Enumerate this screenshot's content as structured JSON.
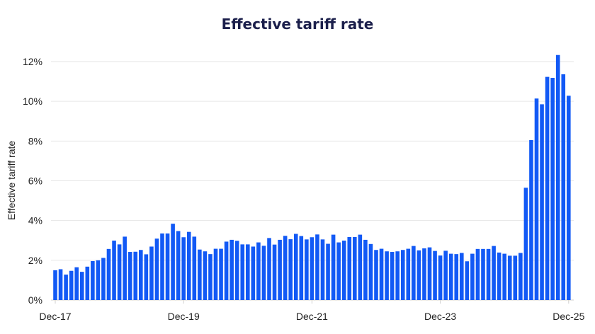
{
  "chart_data": {
    "type": "bar",
    "title": "Effective tariff rate",
    "ylabel": "Effective tariff rate",
    "xlabel": "",
    "frequency": "monthly",
    "first_period": "Dec-17",
    "last_period": "Dec-25",
    "x_tick_labels": [
      "Dec-17",
      "Dec-19",
      "Dec-21",
      "Dec-23",
      "Dec-25"
    ],
    "y_tick_labels": [
      "0%",
      "2%",
      "4%",
      "6%",
      "8%",
      "10%",
      "12%"
    ],
    "ylim": [
      0,
      12
    ],
    "unit": "%",
    "grid": true,
    "color": "#1259f5",
    "values": [
      1.5,
      1.55,
      1.28,
      1.47,
      1.65,
      1.42,
      1.68,
      1.96,
      2.0,
      2.12,
      2.57,
      2.99,
      2.8,
      3.19,
      2.42,
      2.43,
      2.52,
      2.3,
      2.69,
      3.09,
      3.35,
      3.35,
      3.84,
      3.47,
      3.16,
      3.43,
      3.19,
      2.54,
      2.45,
      2.31,
      2.58,
      2.58,
      2.94,
      3.03,
      2.98,
      2.8,
      2.8,
      2.69,
      2.9,
      2.73,
      3.12,
      2.79,
      3.03,
      3.23,
      3.06,
      3.33,
      3.22,
      3.05,
      3.16,
      3.3,
      3.05,
      2.83,
      3.29,
      2.9,
      2.99,
      3.17,
      3.17,
      3.29,
      3.03,
      2.82,
      2.52,
      2.58,
      2.45,
      2.42,
      2.45,
      2.52,
      2.58,
      2.72,
      2.5,
      2.6,
      2.65,
      2.47,
      2.24,
      2.48,
      2.33,
      2.31,
      2.37,
      1.95,
      2.33,
      2.57,
      2.57,
      2.57,
      2.72,
      2.39,
      2.33,
      2.23,
      2.23,
      2.37,
      5.65,
      8.05,
      10.14,
      9.85,
      11.23,
      11.18,
      12.33,
      11.36,
      10.28
    ]
  }
}
